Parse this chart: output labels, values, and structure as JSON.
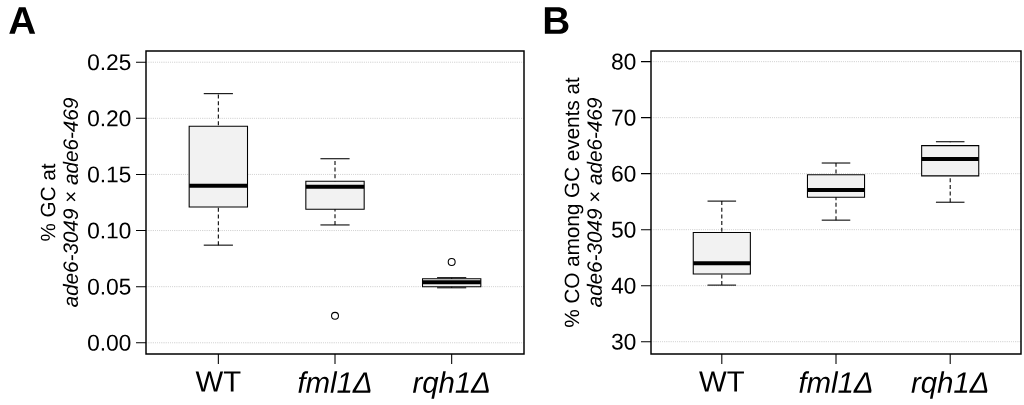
{
  "chart_data": [
    {
      "type": "box",
      "title": "A",
      "ylabel": "% GC at\n*ade6-3049* × *ade6-469*",
      "categories": [
        "WT",
        "*fml1Δ*",
        "*rqh1Δ*"
      ],
      "boxes": [
        {
          "low": 0.087,
          "q1": 0.121,
          "median": 0.14,
          "q3": 0.193,
          "high": 0.222
        },
        {
          "low": 0.105,
          "q1": 0.119,
          "median": 0.139,
          "q3": 0.144,
          "high": 0.164,
          "outliers": [
            0.024
          ]
        },
        {
          "low": 0.049,
          "q1": 0.05,
          "median": 0.054,
          "q3": 0.057,
          "high": 0.058,
          "outliers": [
            0.072
          ]
        }
      ],
      "color": "#f2f2f2",
      "ylim": [
        -0.01,
        0.26
      ],
      "yticks": [
        {
          "value": 0,
          "label": "0.00"
        },
        {
          "value": 0.05,
          "label": "0.05"
        },
        {
          "value": 0.1,
          "label": "0.10"
        },
        {
          "value": 0.15,
          "label": "0.15"
        },
        {
          "value": 0.2,
          "label": "0.20"
        },
        {
          "value": 0.25,
          "label": "0.25"
        }
      ],
      "grid": "y"
    },
    {
      "type": "box",
      "title": "B",
      "ylabel": "% CO among GC events at\n*ade6-3049* × *ade6-469*",
      "categories": [
        "WT",
        "*fml1Δ*",
        "*rqh1Δ*"
      ],
      "boxes": [
        {
          "low": 40.1,
          "q1": 42.1,
          "median": 44.0,
          "q3": 49.5,
          "high": 55.1
        },
        {
          "low": 51.7,
          "q1": 55.8,
          "median": 57.1,
          "q3": 59.8,
          "high": 61.9
        },
        {
          "low": 54.9,
          "q1": 59.6,
          "median": 62.6,
          "q3": 65.0,
          "high": 65.7
        }
      ],
      "color": "#f2f2f2",
      "ylim": [
        27.8,
        81.9
      ],
      "yticks": [
        30,
        40,
        50,
        60,
        70,
        80
      ],
      "grid": "y"
    }
  ]
}
